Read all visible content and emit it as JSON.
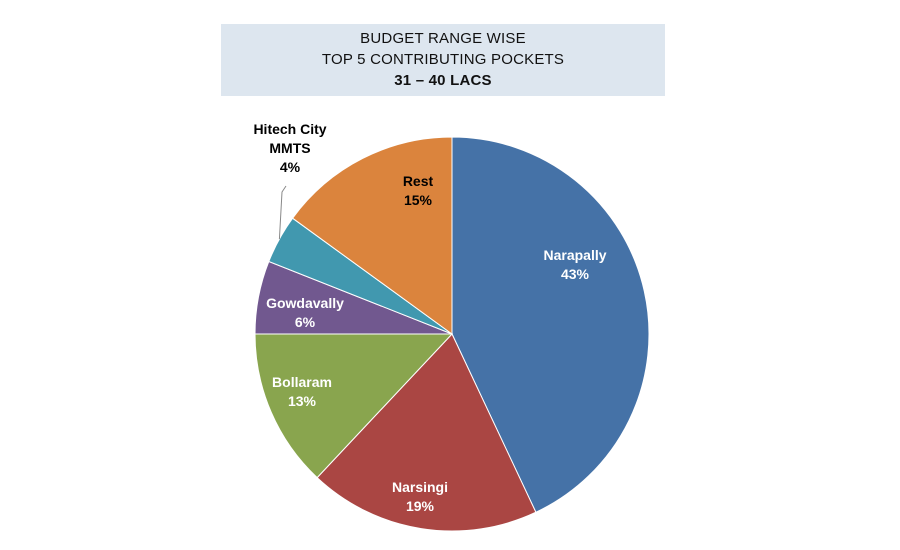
{
  "chart_data": {
    "type": "pie",
    "title_lines": [
      "BUDGET RANGE WISE",
      "TOP 5 CONTRIBUTING POCKETS",
      "31 – 40 LACS"
    ],
    "slices": [
      {
        "name": "Narapally",
        "value": 43,
        "label": "43%",
        "color": "#4572a7"
      },
      {
        "name": "Narsingi",
        "value": 19,
        "label": "19%",
        "color": "#aa4643"
      },
      {
        "name": "Bollaram",
        "value": 13,
        "label": "13%",
        "color": "#89a54e"
      },
      {
        "name": "Gowdavally",
        "value": 6,
        "label": "6%",
        "color": "#71588f"
      },
      {
        "name": "Hitech City MMTS",
        "name_lines": [
          "Hitech City",
          "MMTS"
        ],
        "value": 4,
        "label": "4%",
        "color": "#4198af"
      },
      {
        "name": "Rest",
        "value": 15,
        "label": "15%",
        "color": "#db843d"
      }
    ],
    "start_angle": "12 o'clock",
    "direction": "clockwise",
    "legend": "none"
  }
}
